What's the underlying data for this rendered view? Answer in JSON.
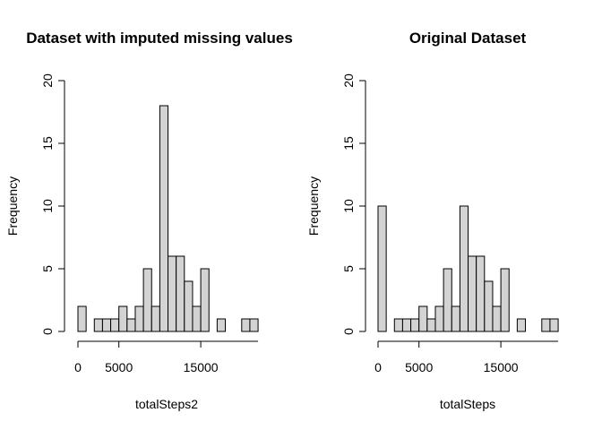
{
  "chart_data": [
    {
      "type": "bar",
      "title": "Dataset with imputed missing values",
      "xlabel": "totalSteps2",
      "ylabel": "Frequency",
      "bin_width": 1000,
      "x_start": 0,
      "values": [
        2,
        0,
        1,
        1,
        1,
        2,
        1,
        2,
        5,
        2,
        18,
        6,
        6,
        4,
        2,
        5,
        0,
        1,
        0,
        0,
        1,
        1
      ],
      "xlim": [
        0,
        22000
      ],
      "ylim": [
        0,
        20
      ],
      "x_ticks": [
        0,
        5000,
        15000
      ],
      "y_ticks": [
        0,
        5,
        10,
        15,
        20
      ]
    },
    {
      "type": "bar",
      "title": "Original Dataset",
      "xlabel": "totalSteps",
      "ylabel": "Frequency",
      "bin_width": 1000,
      "x_start": 0,
      "values": [
        10,
        0,
        1,
        1,
        1,
        2,
        1,
        2,
        5,
        2,
        10,
        6,
        6,
        4,
        2,
        5,
        0,
        1,
        0,
        0,
        1,
        1
      ],
      "xlim": [
        0,
        22000
      ],
      "ylim": [
        0,
        20
      ],
      "x_ticks": [
        0,
        5000,
        15000
      ],
      "y_ticks": [
        0,
        5,
        10,
        15,
        20
      ]
    }
  ]
}
